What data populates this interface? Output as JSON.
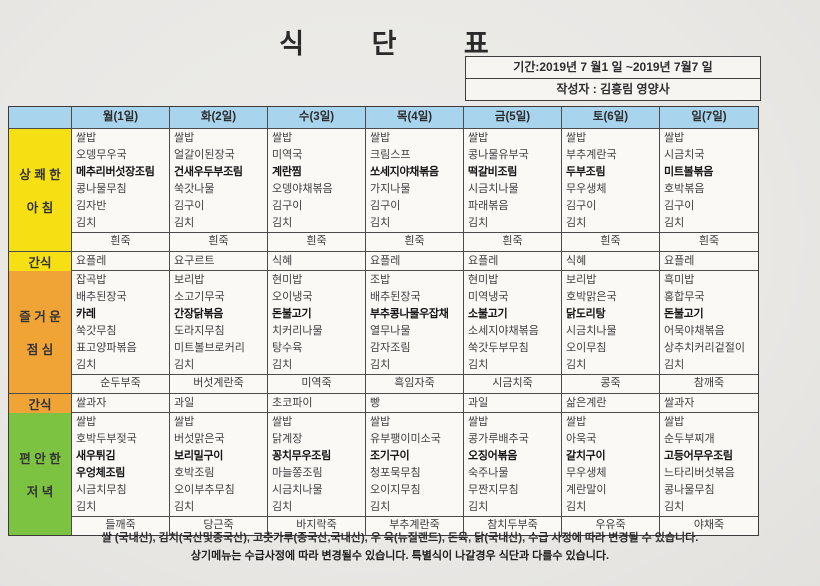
{
  "title": "식 단 표",
  "info": {
    "period": "기간:2019년 7 월1 일 ~2019년  7월7 일",
    "author": "작성자 : 김흥림 영양사"
  },
  "colors": {
    "header_blue": "#a9d4ed",
    "breakfast_yellow": "#f6e013",
    "lunch_orange": "#f0a436",
    "dinner_green": "#7cc342"
  },
  "table": {
    "days": [
      "월(1일)",
      "화(2일)",
      "수(3일)",
      "목(4일)",
      "금(5일)",
      "토(6일)",
      "일(7일)"
    ],
    "sections": [
      {
        "name": "breakfast",
        "kind": "meal",
        "label": [
          "상 쾌 한",
          "아 침"
        ],
        "color": "#f6e013",
        "columns": [
          {
            "items": [
              "쌀밥",
              "오뎅무우국",
              "메추리버섯장조림",
              "콩나물무침",
              "김자반",
              "김치"
            ],
            "bold": [
              2
            ],
            "porridge": "흰죽"
          },
          {
            "items": [
              "쌀밥",
              "얼갈이된장국",
              "건새우두부조림",
              "쑥갓나물",
              "김구이",
              "김치"
            ],
            "bold": [
              2
            ],
            "porridge": "흰죽"
          },
          {
            "items": [
              "쌀밥",
              "미역국",
              "계란찜",
              "오뎅야채볶음",
              "김구이",
              "김치"
            ],
            "bold": [
              2
            ],
            "porridge": "흰죽"
          },
          {
            "items": [
              "쌀밥",
              "크림스프",
              "쏘세지야채볶음",
              "가지나물",
              "김구이",
              "김치"
            ],
            "bold": [
              2
            ],
            "porridge": "흰죽"
          },
          {
            "items": [
              "쌀밥",
              "콩나물유부국",
              "떡갈비조림",
              "시금치나물",
              "파래볶음",
              "김치"
            ],
            "bold": [
              2
            ],
            "porridge": "흰죽"
          },
          {
            "items": [
              "쌀밥",
              "부추계란국",
              "두부조림",
              "무우생체",
              "김구이",
              "김치"
            ],
            "bold": [
              2
            ],
            "porridge": "흰죽"
          },
          {
            "items": [
              "쌀밥",
              "시금치국",
              "미트볼볶음",
              "호박볶음",
              "김구이",
              "김치"
            ],
            "bold": [
              2
            ],
            "porridge": "흰죽"
          }
        ]
      },
      {
        "name": "snack-am",
        "kind": "snack",
        "label": [
          "간식"
        ],
        "color": "#f6e013",
        "items": [
          "요플레",
          "요구르트",
          "식혜",
          "요플레",
          "요플레",
          "식혜",
          "요플레"
        ]
      },
      {
        "name": "lunch",
        "kind": "meal",
        "label": [
          "즐 거 운",
          "점 심"
        ],
        "color": "#f0a436",
        "columns": [
          {
            "items": [
              "잡곡밥",
              "배추된장국",
              "카레",
              "쑥갓무침",
              "표고양파볶음",
              "김치"
            ],
            "bold": [
              2
            ],
            "porridge": "순두부죽"
          },
          {
            "items": [
              "보리밥",
              "소고기무국",
              "간장닭볶음",
              "도라지무침",
              "미트볼브로커리",
              "김치"
            ],
            "bold": [
              2
            ],
            "porridge": "버섯계란죽"
          },
          {
            "items": [
              "현미밥",
              "오이냉국",
              "돈불고기",
              "치커리나물",
              "탕수육",
              "김치"
            ],
            "bold": [
              2
            ],
            "porridge": "미역죽"
          },
          {
            "items": [
              "조밥",
              "배추된장국",
              "부추콩나물우잡채",
              "열무나물",
              "감자조림",
              "김치"
            ],
            "bold": [
              2
            ],
            "porridge": "흑임자죽"
          },
          {
            "items": [
              "현미밥",
              "미역냉국",
              "소불고기",
              "소세지야채볶음",
              "쑥갓두부무침",
              "김치"
            ],
            "bold": [
              2
            ],
            "porridge": "시금치죽"
          },
          {
            "items": [
              "보리밥",
              "호박맑은국",
              "닭도리탕",
              "시금치나물",
              "오이무침",
              "김치"
            ],
            "bold": [
              2
            ],
            "porridge": "콩죽"
          },
          {
            "items": [
              "흑미밥",
              "홍합무국",
              "돈불고기",
              "어묵야채볶음",
              "상추치커리겉절이",
              "김치"
            ],
            "bold": [
              2
            ],
            "porridge": "참깨죽"
          }
        ]
      },
      {
        "name": "snack-pm",
        "kind": "snack",
        "label": [
          "간식"
        ],
        "color": "#f0a436",
        "items": [
          "쌀과자",
          "과일",
          "초코파이",
          "빵",
          "과일",
          "삶은계란",
          "쌀과자"
        ]
      },
      {
        "name": "dinner",
        "kind": "meal",
        "label": [
          "편 안 한",
          "저 녁"
        ],
        "color": "#7cc342",
        "columns": [
          {
            "items": [
              "쌀밥",
              "호박두부젖국",
              "새우튀김",
              "우엉체조림",
              "시금치무침",
              "김치"
            ],
            "bold": [
              2,
              3
            ],
            "porridge": "들깨죽"
          },
          {
            "items": [
              "쌀밥",
              "버섯맑은국",
              "보리밀구이",
              "호박조림",
              "오이부추무침",
              "김치"
            ],
            "bold": [
              2
            ],
            "porridge": "당근죽"
          },
          {
            "items": [
              "쌀밥",
              "닭계장",
              "꽁치무우조림",
              "마늘쫑조림",
              "시금치나물",
              "김치"
            ],
            "bold": [
              2
            ],
            "porridge": "바지락죽"
          },
          {
            "items": [
              "쌀밥",
              "유부팽이미소국",
              "조기구이",
              "청포묵무침",
              "오이지무침",
              "김치"
            ],
            "bold": [
              2
            ],
            "porridge": "부추계란죽"
          },
          {
            "items": [
              "쌀밥",
              "콩가루배추국",
              "오징어볶음",
              "숙주나물",
              "무짠지무침",
              "김치"
            ],
            "bold": [
              2
            ],
            "porridge": "참치두부죽"
          },
          {
            "items": [
              "쌀밥",
              "아욱국",
              "갈치구이",
              "무우생체",
              "계란말이",
              "김치"
            ],
            "bold": [
              2
            ],
            "porridge": "우유죽"
          },
          {
            "items": [
              "쌀밥",
              "순두부찌개",
              "고등어무우조림",
              "느타리버섯볶음",
              "콩나물무침",
              "김치"
            ],
            "bold": [
              2
            ],
            "porridge": "야채죽"
          }
        ]
      }
    ]
  },
  "footer": {
    "line1": "쌀 (국내산), 김치(국산및중국산), 고춧가루(중국산,국내산), 우 육(뉴질랜드), 돈육, 닭(국내산), 수급 사정에 따라 변경될 수 있습니다.",
    "line2": "상기메뉴는  수급사정에 따라 변경될수 있습니다. 특별식이 나갈경우 식단과 다를수 있습니다."
  }
}
